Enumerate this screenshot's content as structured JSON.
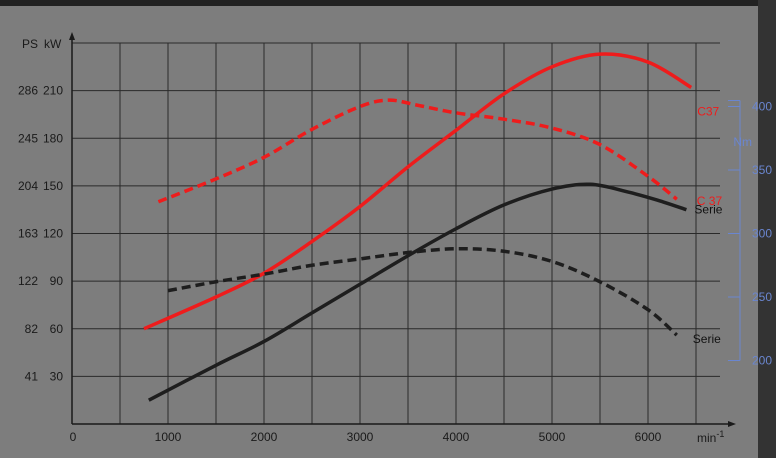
{
  "chart_data": {
    "type": "line",
    "axes": {
      "x": {
        "label": "min-1",
        "label_base": "min",
        "label_exp": "-1",
        "ticks": [
          1000,
          2000,
          3000,
          4000,
          5000,
          6000
        ],
        "range": [
          0,
          6750
        ],
        "origin_label": "0"
      },
      "y_left": {
        "unit_ps": "PS",
        "unit_kw": "kW",
        "range_kw": [
          0,
          240
        ],
        "ticks": [
          {
            "kw": 30,
            "ps": 41
          },
          {
            "kw": 60,
            "ps": 82
          },
          {
            "kw": 90,
            "ps": 122
          },
          {
            "kw": 120,
            "ps": 163
          },
          {
            "kw": 150,
            "ps": 204
          },
          {
            "kw": 180,
            "ps": 245
          },
          {
            "kw": 210,
            "ps": 286
          }
        ]
      },
      "y_right": {
        "unit": "Nm",
        "ticks": [
          200,
          250,
          300,
          350,
          400
        ],
        "range": [
          150,
          450
        ]
      }
    },
    "grid": true,
    "colors": {
      "c37": "#ee1c1c",
      "serie": "#1e1e1e",
      "torque_axis": "#6a86d0",
      "plot_bg": "#7d7d7d"
    },
    "series": [
      {
        "name": "C37",
        "kind": "power",
        "axis": "kW",
        "style": "solid",
        "color": "#ee1c1c",
        "x": [
          750,
          1500,
          2000,
          2500,
          3000,
          3500,
          4000,
          4500,
          5000,
          5500,
          6000,
          6450
        ],
        "y": [
          60,
          80,
          95,
          115,
          137,
          162,
          185,
          208,
          225,
          233,
          228,
          212
        ]
      },
      {
        "name": "C 37",
        "kind": "torque",
        "axis": "Nm",
        "style": "dashed",
        "color": "#ee1c1c",
        "x": [
          900,
          1500,
          2000,
          2500,
          3000,
          3300,
          3600,
          4000,
          4500,
          5000,
          5500,
          6000,
          6300
        ],
        "y": [
          325,
          343,
          360,
          382,
          400,
          405,
          401,
          395,
          390,
          383,
          370,
          345,
          327
        ]
      },
      {
        "name": "Serie",
        "kind": "power",
        "axis": "kW",
        "style": "solid",
        "color": "#1e1e1e",
        "x": [
          800,
          1500,
          2000,
          2500,
          3000,
          3500,
          4000,
          4500,
          5000,
          5400,
          5800,
          6100,
          6400
        ],
        "y": [
          15,
          37,
          52,
          70,
          88,
          106,
          123,
          138,
          148,
          151,
          146,
          141,
          135
        ]
      },
      {
        "name": "Serie",
        "kind": "torque",
        "axis": "Nm",
        "style": "dashed",
        "color": "#1e1e1e",
        "x": [
          1000,
          1500,
          2000,
          2500,
          3000,
          3500,
          4000,
          4500,
          5000,
          5500,
          6000,
          6300
        ],
        "y": [
          255,
          262,
          268,
          275,
          280,
          285,
          288,
          286,
          278,
          262,
          240,
          220
        ]
      }
    ]
  }
}
